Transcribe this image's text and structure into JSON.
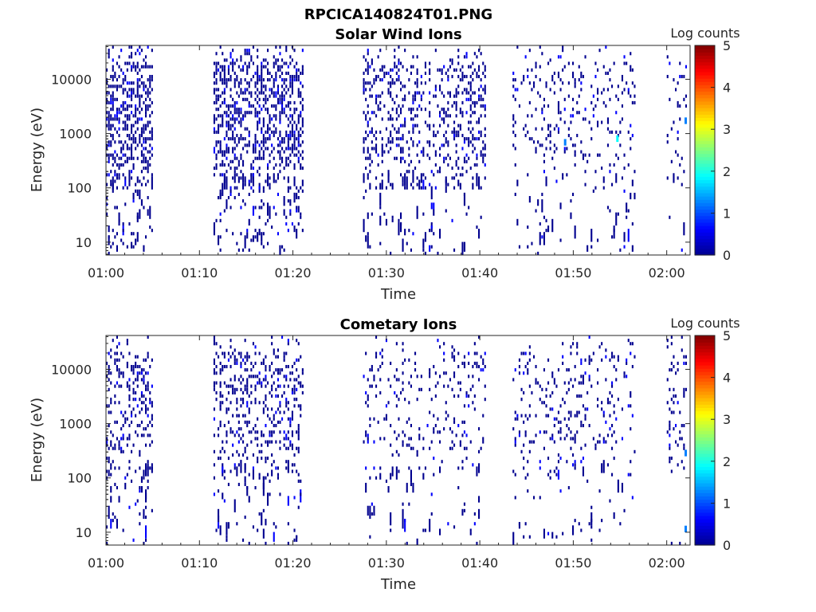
{
  "figure": {
    "title": "RPCICA140824T01.PNG"
  },
  "colormap": [
    "#00008f",
    "#0000ff",
    "#0080ff",
    "#00ffff",
    "#80ff80",
    "#ffff00",
    "#ff8000",
    "#ff0000",
    "#800000"
  ],
  "chart_data": [
    {
      "type": "heatmap",
      "title": "Solar Wind Ions",
      "xlabel": "Time",
      "ylabel": "Energy (eV)",
      "colorbar_label": "Log counts",
      "x_ticks": [
        "01:00",
        "01:10",
        "01:20",
        "01:30",
        "01:40",
        "01:50",
        "02:00"
      ],
      "x_range_minutes": [
        0,
        62.5
      ],
      "y_ticks": [
        "10",
        "100",
        "1000",
        "10000"
      ],
      "y_scale": "log",
      "y_range": [
        5.8,
        42000
      ],
      "colorbar_ticks": [
        "0",
        "1",
        "2",
        "3",
        "4",
        "5"
      ],
      "clim": [
        0,
        5
      ],
      "activity_intervals": [
        {
          "start": 0.0,
          "end": 5.0,
          "level": "high"
        },
        {
          "start": 11.5,
          "end": 21.0,
          "level": "high"
        },
        {
          "start": 27.5,
          "end": 40.5,
          "level": "medium"
        },
        {
          "start": 43.5,
          "end": 56.5,
          "level": "low"
        },
        {
          "start": 60.0,
          "end": 62.0,
          "level": "low"
        }
      ],
      "notable_cells": [
        {
          "time_min": 61.9,
          "energy_ev": 1500,
          "log_counts": 1.5
        },
        {
          "time_min": 54.6,
          "energy_ev": 700,
          "log_counts": 1.8
        },
        {
          "time_min": 49.0,
          "energy_ev": 600,
          "log_counts": 1.2
        }
      ]
    },
    {
      "type": "heatmap",
      "title": "Cometary Ions",
      "xlabel": "Time",
      "ylabel": "Energy (eV)",
      "colorbar_label": "Log counts",
      "x_ticks": [
        "01:00",
        "01:10",
        "01:20",
        "01:30",
        "01:40",
        "01:50",
        "02:00"
      ],
      "x_range_minutes": [
        0,
        62.5
      ],
      "y_ticks": [
        "10",
        "100",
        "1000",
        "10000"
      ],
      "y_scale": "log",
      "y_range": [
        5.8,
        42000
      ],
      "colorbar_ticks": [
        "0",
        "1",
        "2",
        "3",
        "4",
        "5"
      ],
      "clim": [
        0,
        5
      ],
      "activity_intervals": [
        {
          "start": 0.0,
          "end": 5.0,
          "level": "medium"
        },
        {
          "start": 11.5,
          "end": 21.0,
          "level": "medium"
        },
        {
          "start": 27.5,
          "end": 40.5,
          "level": "low"
        },
        {
          "start": 43.5,
          "end": 56.5,
          "level": "low"
        },
        {
          "start": 60.0,
          "end": 62.0,
          "level": "low"
        }
      ],
      "notable_cells": [
        {
          "time_min": 61.9,
          "energy_ev": 250,
          "log_counts": 1.5
        },
        {
          "time_min": 61.9,
          "energy_ev": 10,
          "log_counts": 1.2
        }
      ]
    }
  ]
}
